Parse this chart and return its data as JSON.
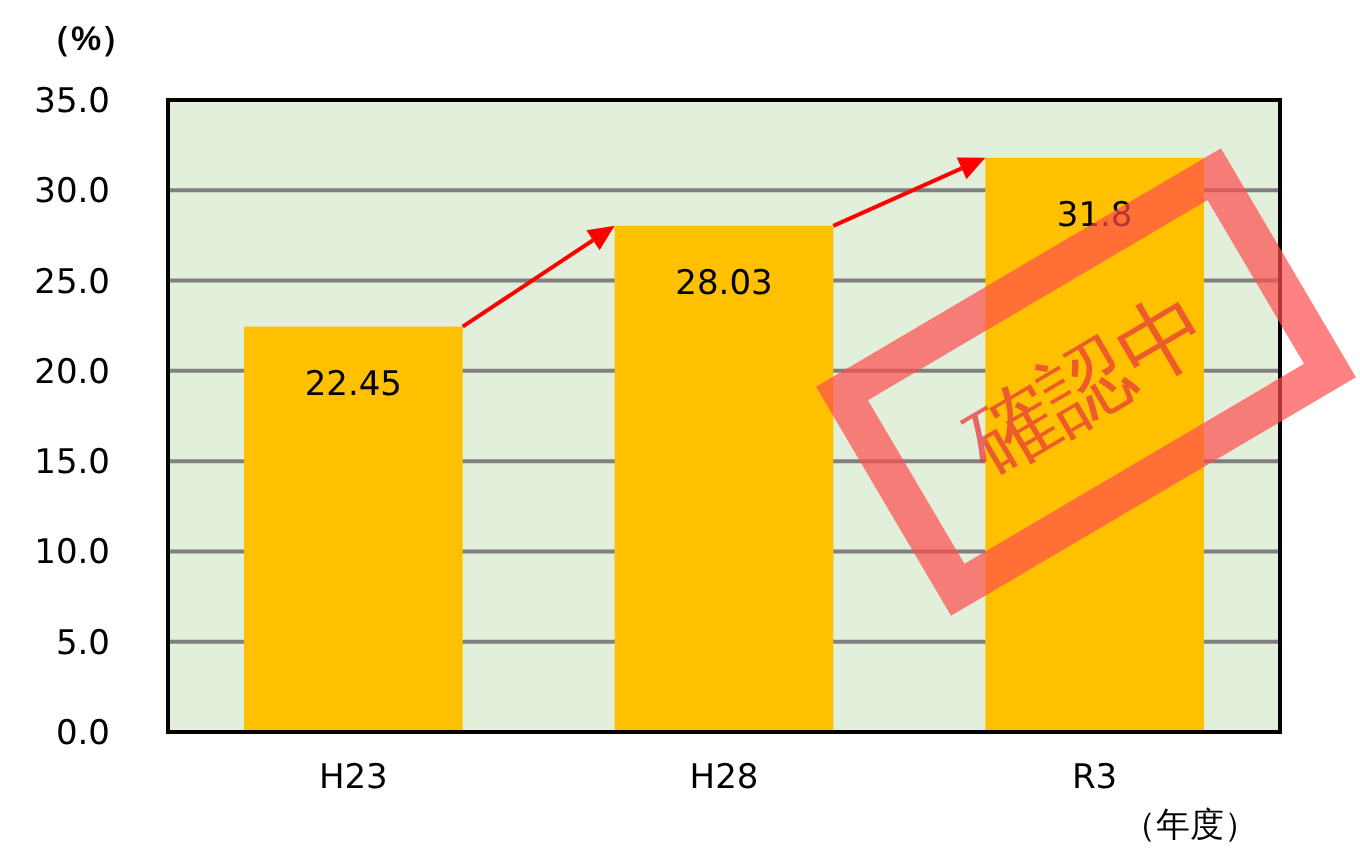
{
  "chart_data": {
    "type": "bar",
    "xlabel": "（年度）",
    "ylabel": "（%）",
    "categories": [
      "H23",
      "H28",
      "R3"
    ],
    "values": [
      22.45,
      28.03,
      31.8
    ],
    "color": "#ffc000",
    "ylim": [
      0,
      35
    ],
    "yticks": [
      {
        "value": 0,
        "label": "0.0"
      },
      {
        "value": 5,
        "label": "5.0"
      },
      {
        "value": 10,
        "label": "10.0"
      },
      {
        "value": 15,
        "label": "15.0"
      },
      {
        "value": 20,
        "label": "20.0"
      },
      {
        "value": 25,
        "label": "25.0"
      },
      {
        "value": 30,
        "label": "30.0"
      },
      {
        "value": 35,
        "label": "35.0"
      }
    ],
    "grid": "y",
    "data_labels": true,
    "annotations": [
      "確認中"
    ]
  }
}
